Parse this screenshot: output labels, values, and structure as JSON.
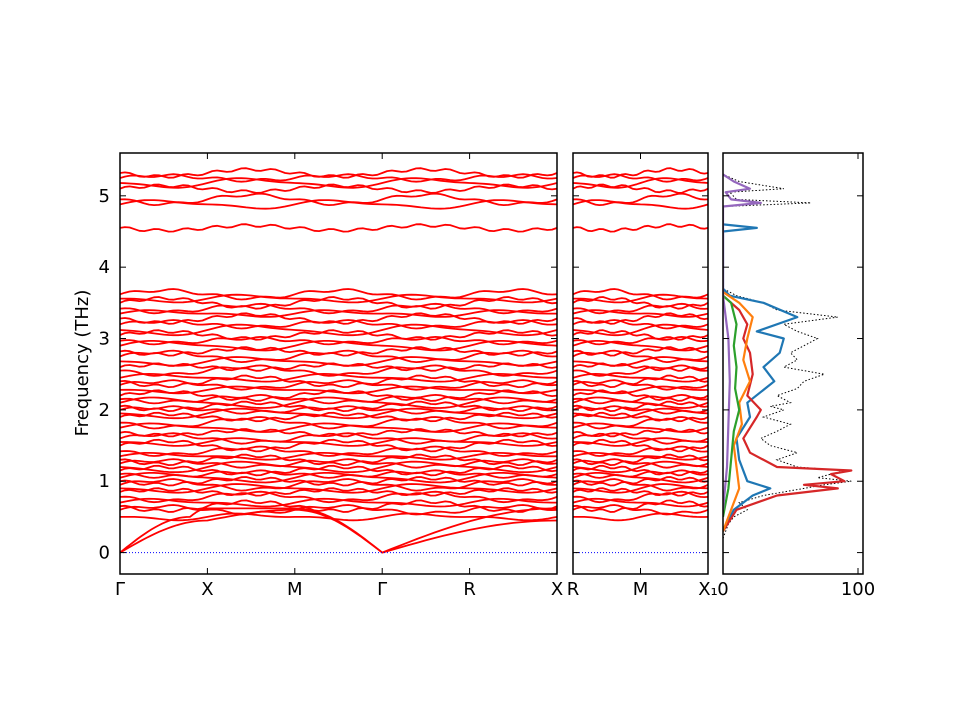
{
  "chart_data": {
    "type": "line",
    "ylabel": "Frequency (THz)",
    "ylim": [
      -0.3,
      5.6
    ],
    "yticks": [
      0,
      1,
      2,
      3,
      4,
      5
    ],
    "band_panels": [
      {
        "xticks": [
          "Γ",
          "X",
          "M",
          "Γ",
          "R",
          "X"
        ],
        "segments": 5,
        "acoustic_zone_edge_THz": [
          0.45,
          0.6,
          0.45
        ]
      },
      {
        "xticks": [
          "R",
          "M",
          "X₁"
        ],
        "segments": 2
      }
    ],
    "band_levels_THz": [
      0.5,
      0.6,
      0.65,
      0.7,
      0.78,
      0.85,
      0.9,
      0.95,
      1.0,
      1.05,
      1.1,
      1.15,
      1.2,
      1.25,
      1.3,
      1.35,
      1.42,
      1.5,
      1.55,
      1.6,
      1.68,
      1.75,
      1.82,
      1.9,
      1.95,
      2.0,
      2.05,
      2.1,
      2.15,
      2.2,
      2.28,
      2.35,
      2.4,
      2.45,
      2.55,
      2.6,
      2.68,
      2.75,
      2.82,
      2.9,
      2.97,
      3.05,
      3.12,
      3.2,
      3.28,
      3.35,
      3.42,
      3.5,
      3.56,
      3.62,
      4.55,
      4.88,
      4.95,
      5.1,
      5.18,
      5.25,
      5.32
    ],
    "dos": {
      "xticks": [
        "0",
        "100"
      ],
      "xlim": [
        0,
        100
      ],
      "total": [
        [
          0.2,
          0
        ],
        [
          0.4,
          4
        ],
        [
          0.5,
          8
        ],
        [
          0.6,
          18
        ],
        [
          0.7,
          12
        ],
        [
          0.8,
          30
        ],
        [
          0.9,
          60
        ],
        [
          0.95,
          75
        ],
        [
          1.0,
          95
        ],
        [
          1.05,
          70
        ],
        [
          1.1,
          80
        ],
        [
          1.15,
          90
        ],
        [
          1.2,
          55
        ],
        [
          1.3,
          40
        ],
        [
          1.4,
          55
        ],
        [
          1.5,
          35
        ],
        [
          1.6,
          28
        ],
        [
          1.7,
          40
        ],
        [
          1.8,
          50
        ],
        [
          1.9,
          30
        ],
        [
          2.0,
          45
        ],
        [
          2.05,
          35
        ],
        [
          2.1,
          50
        ],
        [
          2.2,
          40
        ],
        [
          2.3,
          55
        ],
        [
          2.4,
          60
        ],
        [
          2.5,
          75
        ],
        [
          2.6,
          45
        ],
        [
          2.7,
          55
        ],
        [
          2.8,
          50
        ],
        [
          2.9,
          60
        ],
        [
          3.0,
          70
        ],
        [
          3.1,
          55
        ],
        [
          3.2,
          45
        ],
        [
          3.3,
          85
        ],
        [
          3.4,
          40
        ],
        [
          3.5,
          30
        ],
        [
          3.6,
          10
        ],
        [
          3.7,
          0
        ],
        [
          4.5,
          0
        ],
        [
          4.55,
          25
        ],
        [
          4.6,
          0
        ],
        [
          4.85,
          0
        ],
        [
          4.9,
          65
        ],
        [
          4.95,
          10
        ],
        [
          5.05,
          5
        ],
        [
          5.1,
          45
        ],
        [
          5.2,
          12
        ],
        [
          5.3,
          0
        ]
      ],
      "series": [
        {
          "color": "#1f77b4",
          "points": [
            [
              0.3,
              0
            ],
            [
              0.6,
              8
            ],
            [
              0.8,
              22
            ],
            [
              0.9,
              35
            ],
            [
              1.0,
              18
            ],
            [
              1.3,
              12
            ],
            [
              1.6,
              10
            ],
            [
              1.9,
              20
            ],
            [
              2.1,
              18
            ],
            [
              2.4,
              38
            ],
            [
              2.6,
              30
            ],
            [
              2.8,
              42
            ],
            [
              3.0,
              45
            ],
            [
              3.1,
              25
            ],
            [
              3.3,
              55
            ],
            [
              3.5,
              30
            ],
            [
              3.6,
              5
            ],
            [
              3.7,
              0
            ],
            [
              4.5,
              0
            ],
            [
              4.55,
              25
            ],
            [
              4.6,
              0
            ]
          ]
        },
        {
          "color": "#d62728",
          "points": [
            [
              0.3,
              0
            ],
            [
              0.6,
              10
            ],
            [
              0.8,
              40
            ],
            [
              0.9,
              85
            ],
            [
              0.95,
              60
            ],
            [
              1.0,
              90
            ],
            [
              1.1,
              80
            ],
            [
              1.15,
              95
            ],
            [
              1.2,
              40
            ],
            [
              1.4,
              20
            ],
            [
              1.6,
              15
            ],
            [
              1.9,
              25
            ],
            [
              2.0,
              28
            ],
            [
              2.2,
              18
            ],
            [
              2.5,
              22
            ],
            [
              2.8,
              20
            ],
            [
              3.0,
              15
            ],
            [
              3.2,
              18
            ],
            [
              3.4,
              12
            ],
            [
              3.6,
              0
            ]
          ]
        },
        {
          "color": "#ff7f0e",
          "points": [
            [
              0.3,
              0
            ],
            [
              0.6,
              6
            ],
            [
              0.9,
              12
            ],
            [
              1.2,
              10
            ],
            [
              1.5,
              8
            ],
            [
              1.8,
              14
            ],
            [
              2.1,
              12
            ],
            [
              2.4,
              20
            ],
            [
              2.7,
              15
            ],
            [
              3.0,
              18
            ],
            [
              3.3,
              22
            ],
            [
              3.5,
              12
            ],
            [
              3.65,
              0
            ]
          ]
        },
        {
          "color": "#2ca02c",
          "points": [
            [
              0.5,
              0
            ],
            [
              0.9,
              4
            ],
            [
              1.3,
              6
            ],
            [
              1.7,
              8
            ],
            [
              2.0,
              12
            ],
            [
              2.3,
              9
            ],
            [
              2.6,
              10
            ],
            [
              2.9,
              8
            ],
            [
              3.2,
              10
            ],
            [
              3.5,
              6
            ],
            [
              3.6,
              0
            ]
          ]
        },
        {
          "color": "#9467bd",
          "points": [
            [
              0.6,
              0
            ],
            [
              1.2,
              3
            ],
            [
              1.8,
              4
            ],
            [
              2.4,
              5
            ],
            [
              3.0,
              4
            ],
            [
              3.6,
              0
            ],
            [
              4.85,
              0
            ],
            [
              4.9,
              28
            ],
            [
              4.95,
              6
            ],
            [
              5.05,
              2
            ],
            [
              5.1,
              20
            ],
            [
              5.2,
              8
            ],
            [
              5.3,
              0
            ]
          ]
        }
      ]
    }
  }
}
